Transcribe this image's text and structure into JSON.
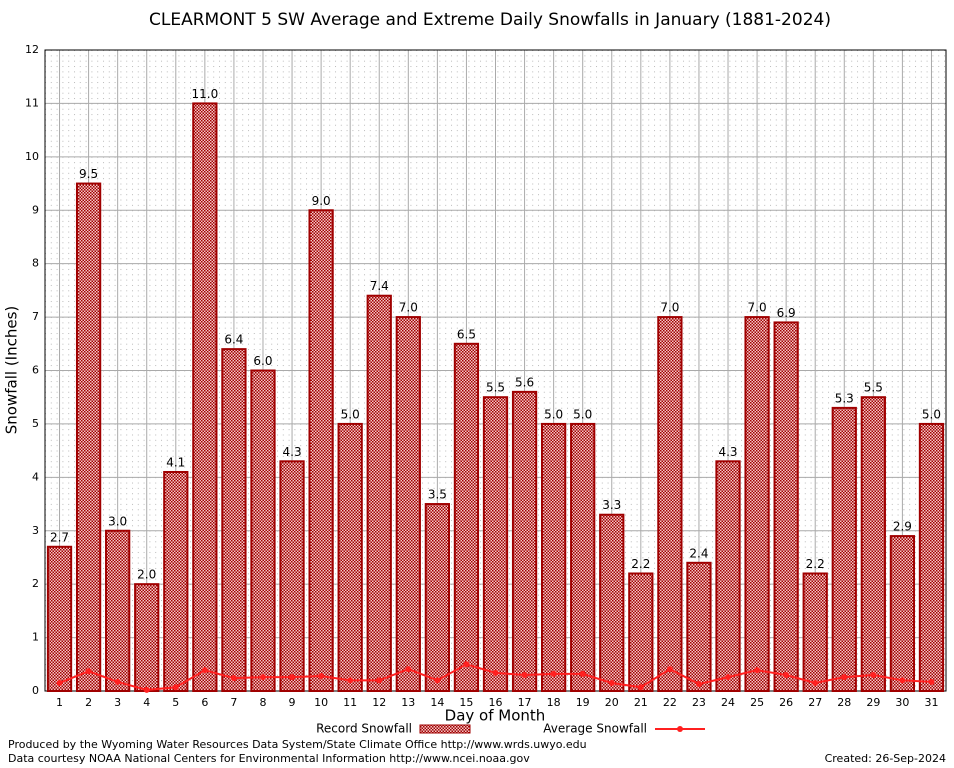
{
  "chart_data": {
    "type": "bar",
    "title": "CLEARMONT 5 SW Average and Extreme Daily Snowfalls in January (1881-2024)",
    "x_label": "Day of Month",
    "y_label": "Snowfall (Inches)",
    "categories": [
      "1",
      "2",
      "3",
      "4",
      "5",
      "6",
      "7",
      "8",
      "9",
      "10",
      "11",
      "12",
      "13",
      "14",
      "15",
      "16",
      "17",
      "18",
      "19",
      "20",
      "21",
      "22",
      "23",
      "24",
      "25",
      "26",
      "27",
      "28",
      "29",
      "30",
      "31"
    ],
    "series": [
      {
        "name": "Record Snowfall",
        "type": "bar",
        "color": "#a00000",
        "values": [
          2.7,
          9.5,
          3.0,
          2.0,
          4.1,
          11.0,
          6.4,
          6.0,
          4.3,
          9.0,
          5.0,
          7.4,
          7.0,
          3.5,
          6.5,
          5.5,
          5.6,
          5.0,
          5.0,
          3.3,
          2.2,
          7.0,
          2.4,
          4.3,
          7.0,
          6.9,
          2.2,
          5.3,
          5.5,
          2.9,
          5.0
        ],
        "value_labels": [
          "2.7",
          "9.5",
          "3.0",
          "2.0",
          "4.1",
          "11.0",
          "6.4",
          "6.0",
          "4.3",
          "9.0",
          "5.0",
          "7.4",
          "7.0",
          "3.5",
          "6.5",
          "5.5",
          "5.6",
          "5.0",
          "5.0",
          "3.3",
          "2.2",
          "7.0",
          "2.4",
          "4.3",
          "7.0",
          "6.9",
          "2.2",
          "5.3",
          "5.5",
          "2.9",
          "5.0"
        ]
      },
      {
        "name": "Average Snowfall",
        "type": "line",
        "color": "#ff2020",
        "values": [
          0.15,
          0.37,
          0.17,
          0.02,
          0.07,
          0.39,
          0.24,
          0.26,
          0.26,
          0.28,
          0.2,
          0.2,
          0.41,
          0.2,
          0.5,
          0.34,
          0.3,
          0.32,
          0.32,
          0.15,
          0.07,
          0.41,
          0.13,
          0.26,
          0.39,
          0.3,
          0.15,
          0.26,
          0.3,
          0.2,
          0.17
        ]
      }
    ],
    "ylim": [
      0,
      12
    ],
    "yticks": [
      0,
      1,
      2,
      3,
      4,
      5,
      6,
      7,
      8,
      9,
      10,
      11,
      12
    ],
    "grid": true,
    "legend": "bottom",
    "footer": [
      "Produced by the Wyoming Water Resources Data System/State Climate Office http://www.wrds.uwyo.edu",
      "Data courtesy NOAA National Centers for Environmental Information http://www.ncei.noaa.gov"
    ],
    "created": "Created:  26-Sep-2024"
  }
}
